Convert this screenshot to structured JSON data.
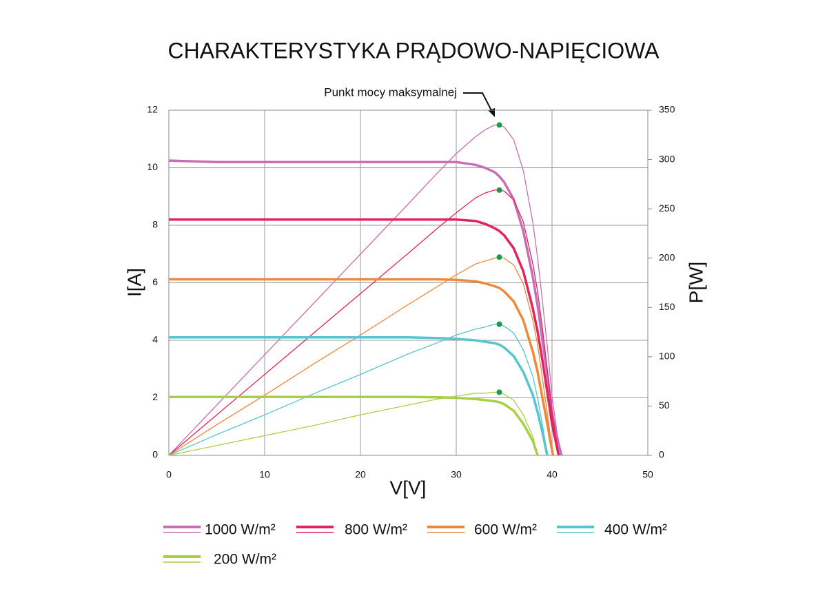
{
  "chart_data": {
    "type": "line",
    "title": "CHARAKTERYSTYKA PRĄDOWO-NAPIĘCIOWA",
    "x_label": "V[V]",
    "y_label": "I[A]",
    "y2_label": "P[W]",
    "annotation": "Punkt mocy maksymalnej",
    "xlim": [
      0,
      50
    ],
    "xticks": [
      0,
      10,
      20,
      30,
      40,
      50
    ],
    "ylim": [
      0,
      12
    ],
    "yticks": [
      0,
      2,
      4,
      6,
      8,
      10,
      12
    ],
    "y2lim": [
      0,
      350
    ],
    "y2ticks": [
      0,
      50,
      100,
      150,
      200,
      250,
      300,
      350
    ],
    "grid": true,
    "mpp_color": "#1a9a50",
    "series": [
      {
        "name": "1000 W/m²",
        "color": "#c86fb4",
        "x": [
          0,
          5,
          10,
          15,
          20,
          25,
          28,
          30,
          32,
          33,
          34,
          34.5,
          35,
          36,
          37,
          38,
          38.5,
          39,
          39.5,
          40,
          40.5,
          41
        ],
        "values": [
          10.25,
          10.2,
          10.2,
          10.2,
          10.2,
          10.2,
          10.2,
          10.2,
          10.1,
          10.0,
          9.85,
          9.7,
          9.5,
          8.9,
          7.8,
          6.2,
          5.2,
          4.0,
          2.8,
          1.5,
          0.6,
          0
        ],
        "power": [
          0,
          51,
          102,
          153,
          204,
          255,
          286,
          306,
          323,
          330,
          335,
          335,
          333,
          320,
          289,
          236,
          200,
          156,
          111,
          60,
          24,
          0
        ],
        "mpp_x": 34.5,
        "mpp_power": 335
      },
      {
        "name": "800 W/m²",
        "color": "#e0245e",
        "x": [
          0,
          5,
          10,
          15,
          20,
          25,
          28,
          30,
          32,
          33,
          34,
          34.5,
          35,
          36,
          37,
          38,
          38.5,
          39,
          39.5,
          40,
          40.7
        ],
        "values": [
          8.2,
          8.2,
          8.2,
          8.2,
          8.2,
          8.2,
          8.2,
          8.2,
          8.15,
          8.05,
          7.9,
          7.8,
          7.65,
          7.2,
          6.4,
          5.1,
          4.3,
          3.3,
          2.2,
          1.1,
          0
        ],
        "power": [
          0,
          41,
          82,
          123,
          164,
          205,
          230,
          246,
          261,
          266,
          269,
          269,
          268,
          259,
          237,
          194,
          166,
          129,
          87,
          44,
          0
        ],
        "mpp_x": 34.5,
        "mpp_power": 269
      },
      {
        "name": "600 W/m²",
        "color": "#f0883a",
        "x": [
          0,
          5,
          10,
          15,
          20,
          25,
          28,
          30,
          32,
          33,
          34,
          34.5,
          35,
          36,
          37,
          38,
          38.5,
          39,
          39.5,
          40.1
        ],
        "values": [
          6.12,
          6.12,
          6.12,
          6.12,
          6.12,
          6.12,
          6.12,
          6.1,
          6.05,
          5.98,
          5.88,
          5.82,
          5.7,
          5.35,
          4.7,
          3.6,
          2.9,
          2.0,
          1.1,
          0
        ],
        "power": [
          0,
          31,
          61,
          92,
          122,
          153,
          171,
          183,
          194,
          197,
          200,
          201,
          200,
          193,
          174,
          137,
          112,
          78,
          43,
          0
        ],
        "mpp_x": 34.5,
        "mpp_power": 201
      },
      {
        "name": "400 W/m²",
        "color": "#57c4cf",
        "x": [
          0,
          5,
          10,
          15,
          20,
          25,
          28,
          30,
          32,
          33,
          34,
          34.5,
          35,
          36,
          37,
          38,
          38.5,
          39,
          39.5
        ],
        "values": [
          4.1,
          4.1,
          4.1,
          4.1,
          4.1,
          4.1,
          4.08,
          4.05,
          4.0,
          3.95,
          3.9,
          3.85,
          3.75,
          3.45,
          2.9,
          2.1,
          1.5,
          0.8,
          0
        ],
        "power": [
          0,
          21,
          41,
          62,
          82,
          103,
          114,
          122,
          128,
          130,
          133,
          133,
          131,
          124,
          107,
          80,
          58,
          31,
          0
        ],
        "mpp_x": 34.5,
        "mpp_power": 133
      },
      {
        "name": "200 W/m²",
        "color": "#a8cf45",
        "x": [
          0,
          5,
          10,
          15,
          20,
          25,
          28,
          30,
          32,
          33,
          34,
          34.5,
          35,
          36,
          37,
          38,
          38.5
        ],
        "values": [
          2.03,
          2.03,
          2.03,
          2.03,
          2.03,
          2.03,
          2.02,
          2.0,
          1.96,
          1.92,
          1.88,
          1.85,
          1.78,
          1.55,
          1.1,
          0.5,
          0
        ],
        "power": [
          0,
          10,
          20,
          30,
          41,
          51,
          57,
          60,
          63,
          63,
          64,
          64,
          62,
          56,
          41,
          19,
          0
        ],
        "mpp_x": 34.5,
        "mpp_power": 64
      }
    ]
  }
}
